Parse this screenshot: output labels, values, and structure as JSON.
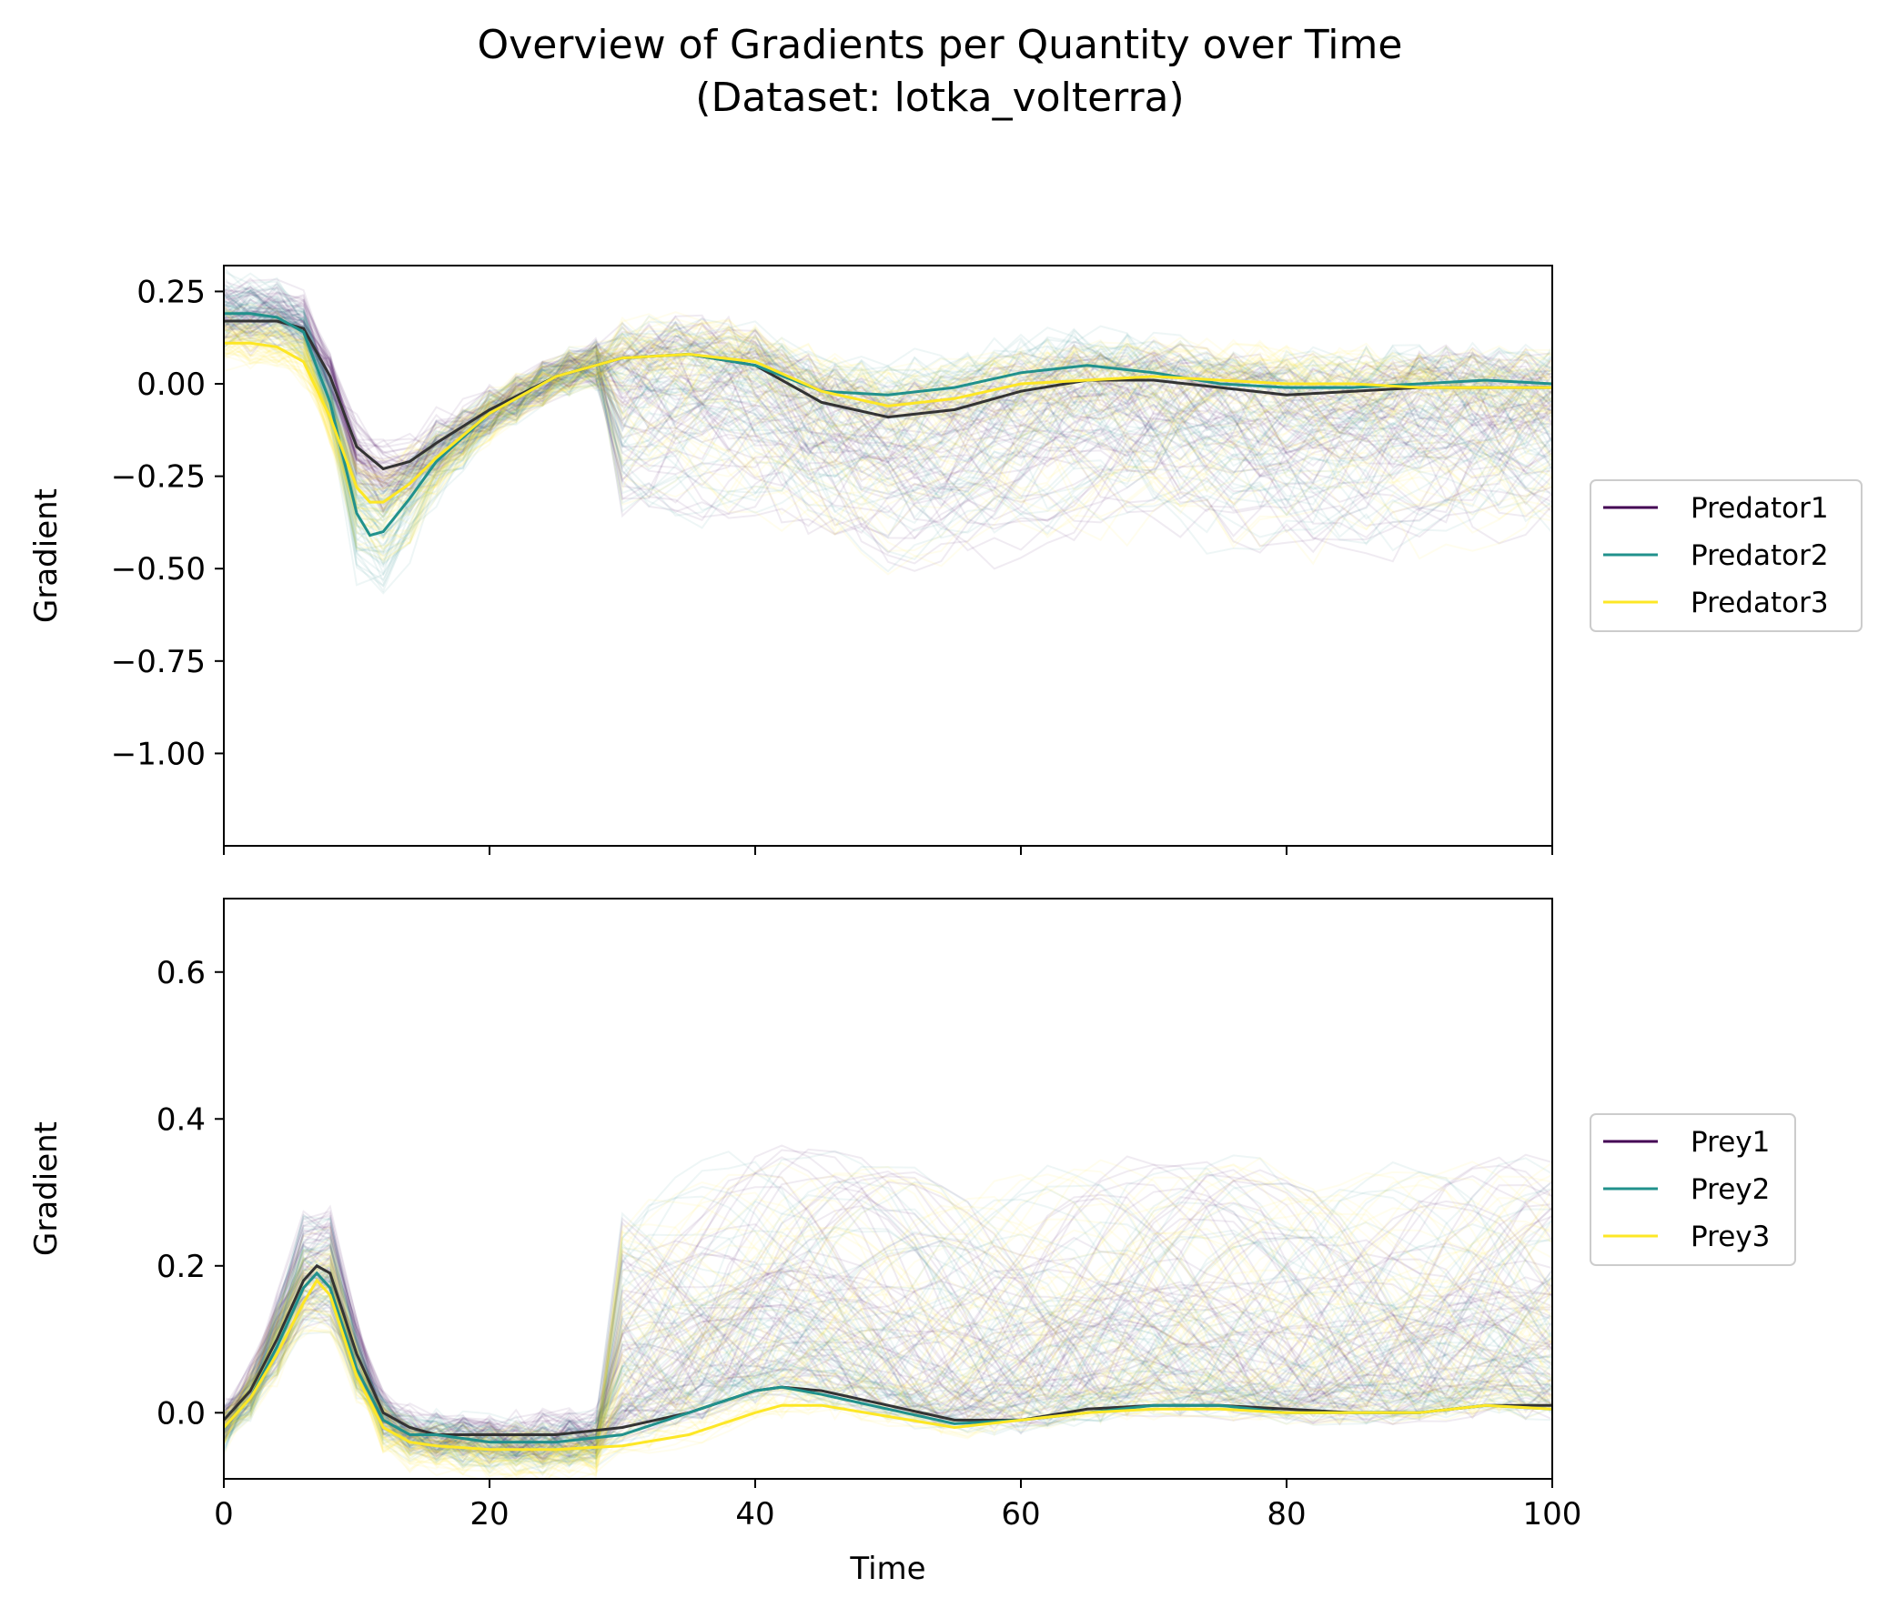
{
  "chart_data": [
    {
      "type": "line",
      "title": "Overview of Gradients per Quantity over Time\n(Dataset: lotka_volterra)",
      "xlabel": "",
      "ylabel": "Gradient",
      "xlim": [
        0,
        100
      ],
      "ylim": [
        -1.25,
        0.32
      ],
      "xticks": [
        0,
        20,
        40,
        60,
        80,
        100
      ],
      "yticks": [
        0.25,
        0.0,
        -0.25,
        -0.5,
        -0.75,
        -1.0
      ],
      "ytick_labels": [
        "0.25",
        "0.00",
        "−0.25",
        "−0.50",
        "−0.75",
        "−1.00"
      ],
      "legend_position": "right",
      "series": [
        {
          "name": "Predator1",
          "color": "#440154",
          "x": [
            0,
            2,
            4,
            6,
            8,
            10,
            12,
            14,
            16,
            20,
            25,
            30,
            35,
            40,
            45,
            50,
            55,
            60,
            65,
            70,
            75,
            80,
            85,
            90,
            95,
            100
          ],
          "values": [
            0.17,
            0.17,
            0.17,
            0.15,
            0.02,
            -0.17,
            -0.23,
            -0.21,
            -0.16,
            -0.07,
            0.02,
            0.07,
            0.08,
            0.05,
            -0.05,
            -0.09,
            -0.07,
            -0.02,
            0.01,
            0.01,
            -0.01,
            -0.03,
            -0.02,
            -0.01,
            -0.01,
            -0.01
          ]
        },
        {
          "name": "Predator2",
          "color": "#21918c",
          "x": [
            0,
            2,
            4,
            6,
            8,
            10,
            11,
            12,
            14,
            16,
            20,
            25,
            30,
            35,
            40,
            45,
            50,
            55,
            60,
            65,
            70,
            75,
            80,
            85,
            90,
            95,
            100
          ],
          "values": [
            0.19,
            0.19,
            0.18,
            0.14,
            -0.05,
            -0.35,
            -0.41,
            -0.4,
            -0.31,
            -0.21,
            -0.08,
            0.02,
            0.07,
            0.08,
            0.05,
            -0.02,
            -0.03,
            -0.01,
            0.03,
            0.05,
            0.03,
            0.0,
            -0.01,
            -0.01,
            0.0,
            0.01,
            0.0
          ]
        },
        {
          "name": "Predator3",
          "color": "#fde725",
          "x": [
            0,
            2,
            4,
            6,
            8,
            10,
            11,
            12,
            14,
            16,
            20,
            25,
            30,
            35,
            40,
            45,
            50,
            55,
            60,
            65,
            70,
            75,
            80,
            85,
            90,
            95,
            100
          ],
          "values": [
            0.11,
            0.11,
            0.1,
            0.06,
            -0.09,
            -0.28,
            -0.32,
            -0.32,
            -0.27,
            -0.2,
            -0.08,
            0.02,
            0.07,
            0.08,
            0.06,
            -0.02,
            -0.06,
            -0.04,
            0.0,
            0.01,
            0.02,
            0.01,
            0.0,
            0.0,
            -0.01,
            -0.01,
            -0.01
          ]
        }
      ]
    },
    {
      "type": "line",
      "title": "",
      "xlabel": "Time",
      "ylabel": "Gradient",
      "xlim": [
        0,
        100
      ],
      "ylim": [
        -0.09,
        0.7
      ],
      "xticks": [
        0,
        20,
        40,
        60,
        80,
        100
      ],
      "xtick_labels": [
        "0",
        "20",
        "40",
        "60",
        "80",
        "100"
      ],
      "yticks": [
        0.0,
        0.2,
        0.4,
        0.6
      ],
      "ytick_labels": [
        "0.0",
        "0.2",
        "0.4",
        "0.6"
      ],
      "legend_position": "right",
      "series": [
        {
          "name": "Prey1",
          "color": "#440154",
          "x": [
            0,
            2,
            4,
            6,
            7,
            8,
            10,
            12,
            14,
            16,
            20,
            25,
            30,
            35,
            40,
            42,
            45,
            50,
            55,
            60,
            65,
            70,
            75,
            80,
            85,
            90,
            95,
            100
          ],
          "values": [
            -0.01,
            0.03,
            0.1,
            0.18,
            0.2,
            0.19,
            0.08,
            0.0,
            -0.02,
            -0.03,
            -0.03,
            -0.03,
            -0.02,
            0.0,
            0.03,
            0.035,
            0.03,
            0.01,
            -0.01,
            -0.01,
            0.005,
            0.01,
            0.01,
            0.005,
            0.0,
            0.0,
            0.01,
            0.01
          ]
        },
        {
          "name": "Prey2",
          "color": "#21918c",
          "x": [
            0,
            2,
            4,
            6,
            7,
            8,
            10,
            12,
            14,
            16,
            20,
            25,
            30,
            35,
            40,
            42,
            45,
            50,
            55,
            60,
            65,
            70,
            75,
            80,
            85,
            90,
            95,
            100
          ],
          "values": [
            -0.02,
            0.02,
            0.09,
            0.17,
            0.19,
            0.17,
            0.06,
            -0.01,
            -0.03,
            -0.03,
            -0.04,
            -0.04,
            -0.03,
            0.0,
            0.03,
            0.035,
            0.025,
            0.005,
            -0.015,
            -0.01,
            0.0,
            0.01,
            0.01,
            0.0,
            0.0,
            0.0,
            0.01,
            0.005
          ]
        },
        {
          "name": "Prey3",
          "color": "#fde725",
          "x": [
            0,
            2,
            4,
            6,
            7,
            8,
            10,
            12,
            14,
            16,
            20,
            25,
            30,
            35,
            40,
            42,
            45,
            50,
            55,
            60,
            65,
            70,
            75,
            80,
            85,
            90,
            95,
            100
          ],
          "values": [
            -0.02,
            0.02,
            0.08,
            0.15,
            0.18,
            0.16,
            0.05,
            -0.02,
            -0.04,
            -0.045,
            -0.05,
            -0.05,
            -0.045,
            -0.03,
            0.0,
            0.01,
            0.01,
            -0.005,
            -0.02,
            -0.01,
            0.0,
            0.005,
            0.005,
            0.0,
            0.0,
            0.0,
            0.01,
            0.005
          ]
        }
      ]
    }
  ]
}
